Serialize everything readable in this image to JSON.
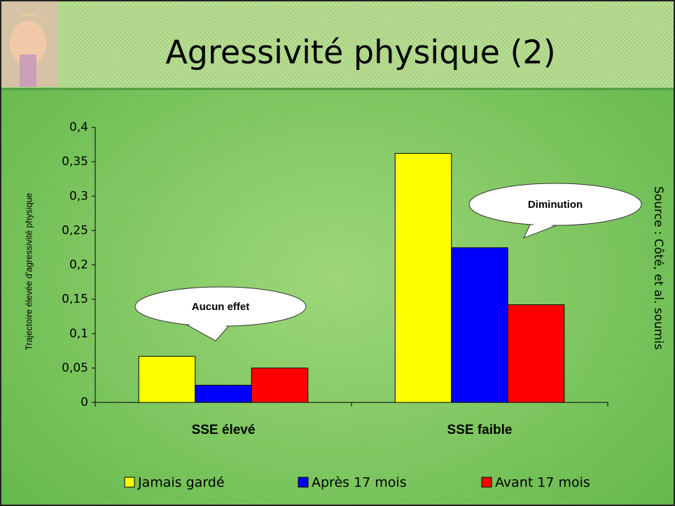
{
  "title": "Agressivité physique (2)",
  "chart_data": {
    "type": "bar",
    "y_label": "Trajectoire élevée d'agressivité physique",
    "categories": [
      "SSE élevé",
      "SSE faible"
    ],
    "series": [
      {
        "name": "Jamais gardé",
        "color": "#ffff00",
        "values": [
          0.067,
          0.362
        ]
      },
      {
        "name": "Après 17 mois",
        "color": "#0000ff",
        "values": [
          0.025,
          0.225
        ]
      },
      {
        "name": "Avant 17 mois",
        "color": "#ff0000",
        "values": [
          0.05,
          0.142
        ]
      }
    ],
    "ylim": [
      0,
      0.4
    ],
    "yticks": [
      0,
      {
        "value": 0.05,
        "label": "0,05"
      },
      {
        "value": 0.1,
        "label": "0,1"
      },
      {
        "value": 0.15,
        "label": "0,15"
      },
      {
        "value": 0.2,
        "label": "0,2"
      },
      {
        "value": 0.25,
        "label": "0,25"
      },
      {
        "value": 0.3,
        "label": "0,3"
      },
      {
        "value": 0.35,
        "label": "0,35"
      },
      {
        "value": 0.4,
        "label": "0,4"
      }
    ],
    "annotations": [
      "Aucun effet",
      "Diminution"
    ],
    "source": "Source : Côté, et al. soumis",
    "grid": false
  }
}
